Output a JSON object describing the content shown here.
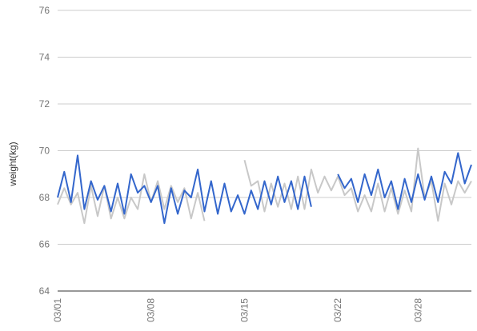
{
  "chart_data": {
    "type": "line",
    "title": "",
    "xlabel": "",
    "ylabel": "weight(kg)",
    "ylim": [
      64,
      76
    ],
    "yticks": [
      64,
      66,
      68,
      70,
      72,
      74,
      76
    ],
    "xlim": [
      0,
      62
    ],
    "xticks": [
      {
        "x": 0,
        "label": "03/01"
      },
      {
        "x": 14,
        "label": "03/08"
      },
      {
        "x": 28,
        "label": "03/15"
      },
      {
        "x": 42,
        "label": "03/22"
      },
      {
        "x": 54,
        "label": "03/28"
      }
    ],
    "grid": true,
    "legend": "none",
    "series": [
      {
        "color": "#c8c8c8",
        "values": [
          67.7,
          68.4,
          67.7,
          68.2,
          66.9,
          68.5,
          67.2,
          68.5,
          67.1,
          68.0,
          67.1,
          68.0,
          67.5,
          69.0,
          67.8,
          68.7,
          67.5,
          68.5,
          67.8,
          68.4,
          67.1,
          68.2,
          67.0,
          null,
          null,
          null,
          null,
          null,
          69.6,
          68.5,
          68.7,
          67.4,
          68.6,
          67.6,
          68.6,
          67.5,
          68.9,
          67.5,
          69.2,
          68.2,
          68.9,
          68.3,
          68.9,
          68.1,
          68.4,
          67.4,
          68.1,
          67.4,
          68.6,
          67.4,
          68.4,
          67.3,
          68.3,
          67.4,
          70.1,
          68.0,
          68.7,
          67.0,
          68.6,
          67.7,
          68.7,
          68.2,
          68.7
        ],
        "line_width": 2
      },
      {
        "color": "#3366cc",
        "values": [
          68.0,
          69.1,
          67.8,
          69.8,
          67.5,
          68.7,
          67.9,
          68.5,
          67.4,
          68.6,
          67.3,
          69.0,
          68.2,
          68.5,
          67.8,
          68.5,
          66.9,
          68.4,
          67.3,
          68.3,
          68.0,
          69.2,
          67.4,
          68.7,
          67.3,
          68.6,
          67.4,
          68.1,
          67.3,
          68.3,
          67.5,
          68.7,
          67.7,
          68.9,
          67.8,
          68.7,
          67.5,
          68.9,
          67.6,
          null,
          null,
          null,
          69.0,
          68.4,
          68.8,
          67.8,
          69.0,
          68.1,
          69.2,
          68.0,
          68.7,
          67.5,
          68.8,
          67.8,
          69.0,
          67.9,
          68.9,
          67.8,
          69.1,
          68.6,
          69.9,
          68.6,
          69.4
        ],
        "line_width": 2
      }
    ]
  }
}
